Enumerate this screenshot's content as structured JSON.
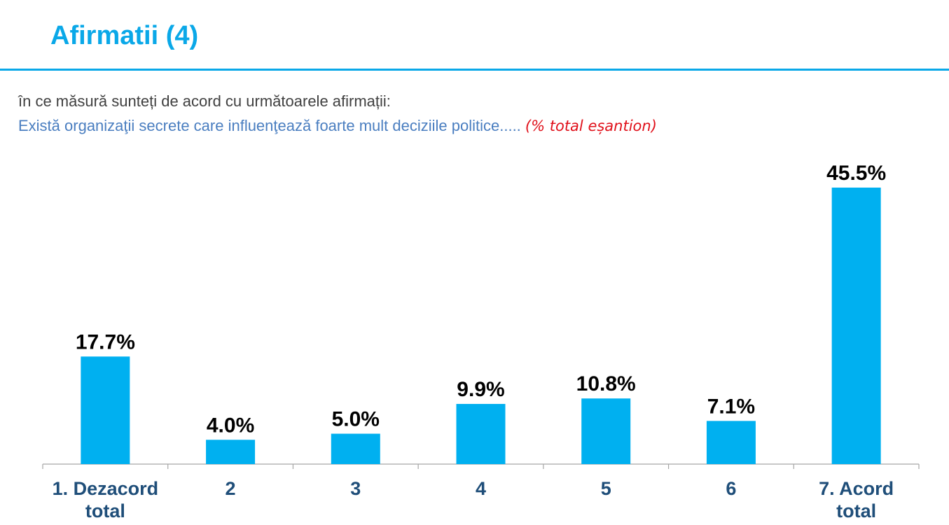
{
  "header": {
    "title": "Afirmatii (4)"
  },
  "intro": {
    "question": "în ce măsură sunteți de acord cu următoarele afirmații:",
    "statement": "Există organizaţii secrete care influenţează foarte mult deciziile politice.....",
    "note": "(% total eșantion)"
  },
  "colors": {
    "accent": "#0AA8E8",
    "bar": "#00B0F0",
    "category_label": "#1F4E79",
    "value_label": "#000000",
    "note": "#E0101A",
    "statement": "#4A7EC0"
  },
  "chart_data": {
    "type": "bar",
    "title": "",
    "xlabel": "",
    "ylabel": "",
    "categories": [
      "1. Dezacord total",
      "2",
      "3",
      "4",
      "5",
      "6",
      "7. Acord total"
    ],
    "category_lines": [
      [
        "1. Dezacord",
        "total"
      ],
      [
        "2"
      ],
      [
        "3"
      ],
      [
        "4"
      ],
      [
        "5"
      ],
      [
        "6"
      ],
      [
        "7. Acord",
        "total"
      ]
    ],
    "values": [
      17.7,
      4.0,
      5.0,
      9.9,
      10.8,
      7.1,
      45.5
    ],
    "value_labels": [
      "17.7%",
      "4.0%",
      "5.0%",
      "9.9%",
      "10.8%",
      "7.1%",
      "45.5%"
    ],
    "ylim": [
      0,
      45.5
    ],
    "grid": false,
    "legend": "none"
  }
}
